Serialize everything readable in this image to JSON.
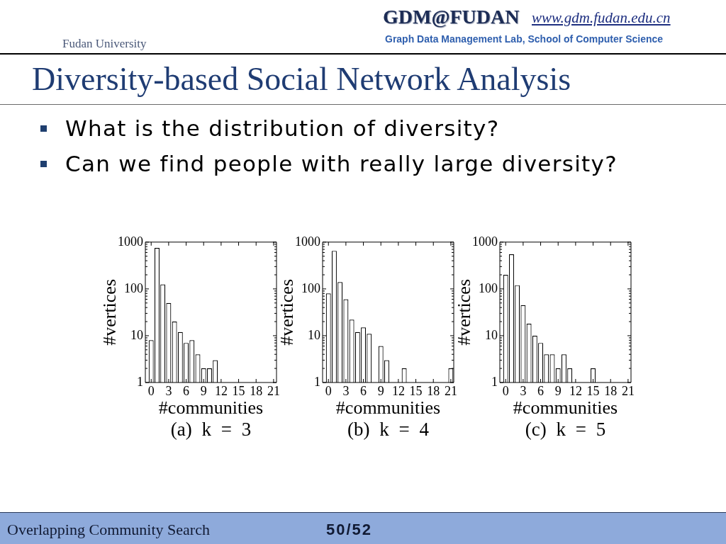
{
  "chart_data": [
    {
      "type": "other",
      "title": "Diversity-based Social Network Analysis",
      "annotations": [
        "Fudan University",
        "GDM@FUDAN",
        "www.gdm.fudan.edu.cn",
        "Graph Data Management Lab, School of Computer Science",
        "What is the distribution of diversity?",
        "Can we find people with really large diversity?"
      ]
    },
    {
      "type": "bar",
      "x": [
        0,
        1,
        2,
        3,
        4,
        5,
        6,
        7,
        8,
        9,
        10,
        11
      ],
      "values": [
        8,
        750,
        125,
        50,
        20,
        12,
        7,
        8,
        4,
        2,
        2,
        3
      ],
      "color": "#ffffff",
      "xlabel": "#communities",
      "ylabel": "#vertices",
      "xlim": [
        -1,
        21.5
      ],
      "xticks": [
        0,
        3,
        6,
        9,
        12,
        15,
        18,
        21
      ],
      "ylim": [
        1,
        1000
      ],
      "yticks": [
        1,
        {
          "value": 2,
          "label": null
        },
        {
          "value": 3,
          "label": null
        },
        {
          "value": 4,
          "label": null
        },
        {
          "value": 5,
          "label": null
        },
        {
          "value": 6,
          "label": null
        },
        {
          "value": 7,
          "label": null
        },
        {
          "value": 8,
          "label": null
        },
        {
          "value": 9,
          "label": null
        },
        10,
        {
          "value": 20,
          "label": null
        },
        {
          "value": 30,
          "label": null
        },
        {
          "value": 40,
          "label": null
        },
        {
          "value": 50,
          "label": null
        },
        {
          "value": 60,
          "label": null
        },
        {
          "value": 70,
          "label": null
        },
        {
          "value": 80,
          "label": null
        },
        {
          "value": 90,
          "label": null
        },
        100,
        {
          "value": 200,
          "label": null
        },
        {
          "value": 300,
          "label": null
        },
        {
          "value": 400,
          "label": null
        },
        {
          "value": 500,
          "label": null
        },
        {
          "value": 600,
          "label": null
        },
        {
          "value": 700,
          "label": null
        },
        {
          "value": 800,
          "label": null
        },
        {
          "value": 900,
          "label": null
        },
        1000
      ],
      "log": "y",
      "annotations": [
        "(a) k = 3"
      ]
    },
    {
      "type": "bar",
      "x": [
        0,
        1,
        2,
        3,
        4,
        5,
        6,
        7,
        9,
        10,
        13,
        21
      ],
      "values": [
        80,
        650,
        140,
        60,
        22,
        12,
        15,
        11,
        6,
        3,
        2,
        2
      ],
      "color": "#ffffff",
      "xlabel": "#communities",
      "ylabel": "#vertices",
      "xlim": [
        -1,
        21.5
      ],
      "xticks": [
        0,
        3,
        6,
        9,
        12,
        15,
        18,
        21
      ],
      "ylim": [
        1,
        1000
      ],
      "yticks": [
        1,
        {
          "value": 2,
          "label": null
        },
        {
          "value": 3,
          "label": null
        },
        {
          "value": 4,
          "label": null
        },
        {
          "value": 5,
          "label": null
        },
        {
          "value": 6,
          "label": null
        },
        {
          "value": 7,
          "label": null
        },
        {
          "value": 8,
          "label": null
        },
        {
          "value": 9,
          "label": null
        },
        10,
        {
          "value": 20,
          "label": null
        },
        {
          "value": 30,
          "label": null
        },
        {
          "value": 40,
          "label": null
        },
        {
          "value": 50,
          "label": null
        },
        {
          "value": 60,
          "label": null
        },
        {
          "value": 70,
          "label": null
        },
        {
          "value": 80,
          "label": null
        },
        {
          "value": 90,
          "label": null
        },
        100,
        {
          "value": 200,
          "label": null
        },
        {
          "value": 300,
          "label": null
        },
        {
          "value": 400,
          "label": null
        },
        {
          "value": 500,
          "label": null
        },
        {
          "value": 600,
          "label": null
        },
        {
          "value": 700,
          "label": null
        },
        {
          "value": 800,
          "label": null
        },
        {
          "value": 900,
          "label": null
        },
        1000
      ],
      "log": "y",
      "annotations": [
        "(b) k = 4"
      ]
    },
    {
      "type": "bar",
      "x": [
        0,
        1,
        2,
        3,
        4,
        5,
        6,
        7,
        8,
        9,
        10,
        11,
        15
      ],
      "values": [
        200,
        550,
        120,
        45,
        18,
        10,
        7,
        4,
        4,
        2,
        4,
        2,
        2
      ],
      "color": "#ffffff",
      "xlabel": "#communities",
      "ylabel": "#vertices",
      "xlim": [
        -1,
        21.5
      ],
      "xticks": [
        0,
        3,
        6,
        9,
        12,
        15,
        18,
        21
      ],
      "ylim": [
        1,
        1000
      ],
      "yticks": [
        1,
        {
          "value": 2,
          "label": null
        },
        {
          "value": 3,
          "label": null
        },
        {
          "value": 4,
          "label": null
        },
        {
          "value": 5,
          "label": null
        },
        {
          "value": 6,
          "label": null
        },
        {
          "value": 7,
          "label": null
        },
        {
          "value": 8,
          "label": null
        },
        {
          "value": 9,
          "label": null
        },
        10,
        {
          "value": 20,
          "label": null
        },
        {
          "value": 30,
          "label": null
        },
        {
          "value": 40,
          "label": null
        },
        {
          "value": 50,
          "label": null
        },
        {
          "value": 60,
          "label": null
        },
        {
          "value": 70,
          "label": null
        },
        {
          "value": 80,
          "label": null
        },
        {
          "value": 90,
          "label": null
        },
        100,
        {
          "value": 200,
          "label": null
        },
        {
          "value": 300,
          "label": null
        },
        {
          "value": 400,
          "label": null
        },
        {
          "value": 500,
          "label": null
        },
        {
          "value": 600,
          "label": null
        },
        {
          "value": 700,
          "label": null
        },
        {
          "value": 800,
          "label": null
        },
        {
          "value": 900,
          "label": null
        },
        1000
      ],
      "log": "y",
      "annotations": [
        "(c) k = 5"
      ]
    },
    {
      "type": "other",
      "annotations": [
        "Overlapping Community Search",
        "50/52"
      ]
    }
  ]
}
